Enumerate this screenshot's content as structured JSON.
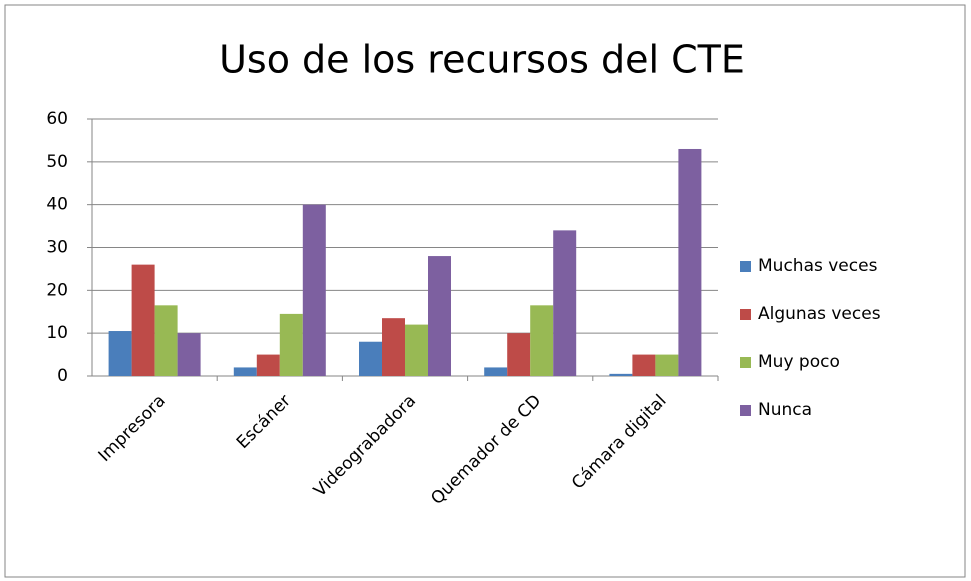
{
  "chart_data": {
    "type": "bar",
    "title": "Uso de los recursos del CTE",
    "categories": [
      "Impresora",
      "Escáner",
      "Videograbadora",
      "Quemador de CD",
      "Cámara digital"
    ],
    "series": [
      {
        "name": "Muchas veces",
        "color": "#4a7ebb",
        "values": [
          10.5,
          2,
          8,
          2,
          0.5
        ]
      },
      {
        "name": "Algunas veces",
        "color": "#be4b48",
        "values": [
          26,
          5,
          13.5,
          10,
          5
        ]
      },
      {
        "name": "Muy poco",
        "color": "#98b954",
        "values": [
          16.5,
          14.5,
          12,
          16.5,
          5
        ]
      },
      {
        "name": "Nunca",
        "color": "#7d60a0",
        "values": [
          10,
          40,
          28,
          34,
          53
        ]
      }
    ],
    "ylim": [
      0,
      60
    ],
    "yticks": [
      0,
      10,
      20,
      30,
      40,
      50,
      60
    ],
    "grid": true,
    "legend": "right"
  }
}
